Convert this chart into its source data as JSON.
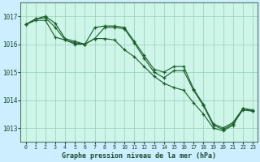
{
  "background_color": "#cceeff",
  "plot_bg_color": "#cdf5e8",
  "grid_color": "#99ccbb",
  "line_color": "#1a5c2a",
  "title": "Graphe pression niveau de la mer (hPa)",
  "xlim": [
    -0.5,
    23.5
  ],
  "ylim": [
    1012.5,
    1017.5
  ],
  "yticks": [
    1013,
    1014,
    1015,
    1016,
    1017
  ],
  "xticks": [
    0,
    1,
    2,
    3,
    4,
    5,
    6,
    7,
    8,
    9,
    10,
    11,
    12,
    13,
    14,
    15,
    16,
    17,
    18,
    19,
    20,
    21,
    22,
    23
  ],
  "series": [
    [
      1016.7,
      1016.9,
      1017.0,
      1016.75,
      1016.2,
      1016.1,
      1016.0,
      1016.6,
      1016.65,
      1016.65,
      1016.6,
      1016.1,
      1015.6,
      1015.1,
      1015.0,
      1015.2,
      1015.2,
      1014.4,
      1013.85,
      1013.15,
      1013.0,
      1013.2,
      1013.7,
      1013.65
    ],
    [
      1016.7,
      1016.9,
      1016.95,
      1016.6,
      1016.15,
      1016.05,
      1016.0,
      1016.2,
      1016.6,
      1016.6,
      1016.55,
      1016.05,
      1015.5,
      1015.0,
      1014.8,
      1015.05,
      1015.05,
      1014.35,
      1013.8,
      1013.1,
      1012.95,
      1013.15,
      1013.65,
      1013.6
    ],
    [
      1016.7,
      1016.85,
      1016.85,
      1016.25,
      1016.15,
      1016.0,
      1016.0,
      1016.2,
      1016.2,
      1016.15,
      1015.8,
      1015.55,
      1015.2,
      1014.85,
      1014.6,
      1014.45,
      1014.35,
      1013.9,
      1013.5,
      1013.0,
      1012.9,
      1013.1,
      1013.7,
      1013.6
    ]
  ]
}
